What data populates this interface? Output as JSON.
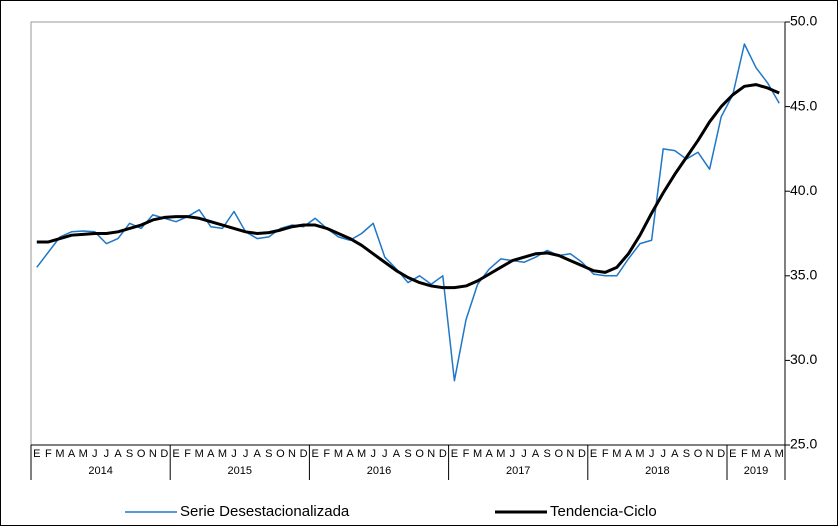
{
  "chart_data": {
    "type": "line",
    "categories": [
      "E",
      "F",
      "M",
      "A",
      "M",
      "J",
      "J",
      "A",
      "S",
      "O",
      "N",
      "D",
      "E",
      "F",
      "M",
      "A",
      "M",
      "J",
      "J",
      "A",
      "S",
      "O",
      "N",
      "D",
      "E",
      "F",
      "M",
      "A",
      "M",
      "J",
      "J",
      "A",
      "S",
      "O",
      "N",
      "D",
      "E",
      "F",
      "M",
      "A",
      "M",
      "J",
      "J",
      "A",
      "S",
      "O",
      "N",
      "D",
      "E",
      "F",
      "M",
      "A",
      "M",
      "J",
      "J",
      "A",
      "S",
      "O",
      "N",
      "D",
      "E",
      "F",
      "M",
      "A",
      "M"
    ],
    "years": [
      "2014",
      "2015",
      "2016",
      "2017",
      "2018",
      "2019"
    ],
    "series": [
      {
        "name": "Serie Desestacionalizada",
        "color": "#1f77c8",
        "width": 1.5,
        "values": [
          35.5,
          36.4,
          37.3,
          37.6,
          37.65,
          37.6,
          36.9,
          37.2,
          38.1,
          37.8,
          38.6,
          38.4,
          38.2,
          38.5,
          38.9,
          37.9,
          37.8,
          38.8,
          37.6,
          37.2,
          37.3,
          37.8,
          38.0,
          37.9,
          38.4,
          37.8,
          37.3,
          37.1,
          37.5,
          38.1,
          36.1,
          35.4,
          34.6,
          35.0,
          34.5,
          35.0,
          28.8,
          32.4,
          34.5,
          35.4,
          36.0,
          35.9,
          35.8,
          36.1,
          36.5,
          36.2,
          36.3,
          35.8,
          35.1,
          35.0,
          35.0,
          36.0,
          36.9,
          37.1,
          42.5,
          42.4,
          41.9,
          42.3,
          41.3,
          44.4,
          45.7,
          48.7,
          47.3,
          46.4,
          45.2
        ]
      },
      {
        "name": "Tendencia-Ciclo",
        "color": "#000000",
        "width": 3,
        "values": [
          37.0,
          37.0,
          37.2,
          37.4,
          37.45,
          37.5,
          37.5,
          37.6,
          37.8,
          38.0,
          38.3,
          38.45,
          38.5,
          38.5,
          38.4,
          38.2,
          38.0,
          37.8,
          37.6,
          37.5,
          37.55,
          37.7,
          37.9,
          38.0,
          38.0,
          37.8,
          37.5,
          37.2,
          36.8,
          36.3,
          35.8,
          35.3,
          34.9,
          34.6,
          34.4,
          34.3,
          34.3,
          34.4,
          34.7,
          35.1,
          35.5,
          35.9,
          36.1,
          36.3,
          36.35,
          36.2,
          35.9,
          35.6,
          35.3,
          35.2,
          35.5,
          36.3,
          37.4,
          38.7,
          39.9,
          41.0,
          42.0,
          43.0,
          44.1,
          45.0,
          45.7,
          46.2,
          46.3,
          46.1,
          45.8
        ]
      }
    ],
    "ylim": [
      25,
      50
    ],
    "yticks": [
      {
        "value": 25,
        "label": "25.0"
      },
      {
        "value": 30,
        "label": "30.0"
      },
      {
        "value": 35,
        "label": "35.0"
      },
      {
        "value": 40,
        "label": "40.0"
      },
      {
        "value": 45,
        "label": "45.0"
      },
      {
        "value": 50,
        "label": "50.0"
      }
    ],
    "legend": "bottom"
  }
}
